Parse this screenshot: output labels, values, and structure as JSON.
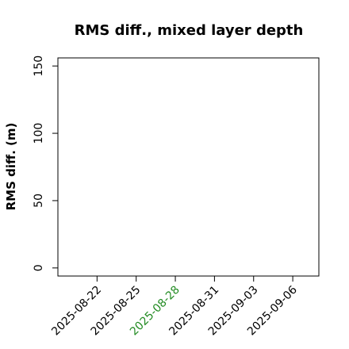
{
  "chart_data": {
    "type": "line",
    "title": "RMS diff., mixed layer depth",
    "ylabel": "RMS diff. (m)",
    "series": [],
    "xlim": [
      "2025-08-19",
      "2025-09-08"
    ],
    "xticks": [
      "2025-08-22",
      "2025-08-25",
      "2025-08-28",
      "2025-08-31",
      "2025-09-03",
      "2025-09-06"
    ],
    "ylim": [
      -6,
      156
    ],
    "yticks": [
      0,
      50,
      100,
      150
    ],
    "highlight_date": "2025-08-28",
    "highlight_color": "#228b22",
    "grid": false
  }
}
